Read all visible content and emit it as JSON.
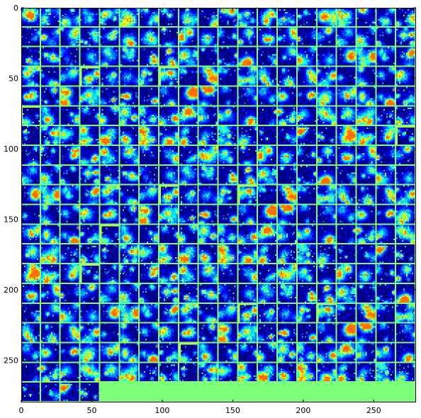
{
  "chart_data": {
    "type": "heatmap",
    "title": "",
    "xlabel": "",
    "ylabel": "",
    "description_of_content": "",
    "image_size": [
      280,
      280
    ],
    "tile_size": 13,
    "grid_line_period": 14,
    "grid_columns": 20,
    "grid_rows": 20,
    "filled_tiles": 384,
    "colormap": "jet",
    "colors": {
      "background_low": "#00007f",
      "grid_line": "#7dff7a",
      "unfilled_region": "#7dff7a",
      "frame": "#000000"
    },
    "xlim": [
      0,
      280
    ],
    "ylim": [
      280,
      0
    ],
    "x_ticks": [
      0,
      50,
      100,
      150,
      200,
      250
    ],
    "x_tick_labels": [
      "0",
      "50",
      "100",
      "150",
      "200",
      "250"
    ],
    "y_ticks": [
      0,
      50,
      100,
      150,
      200,
      250
    ],
    "y_tick_labels": [
      "0",
      "50",
      "100",
      "150",
      "200",
      "250"
    ],
    "grid": false,
    "legend": "none"
  }
}
